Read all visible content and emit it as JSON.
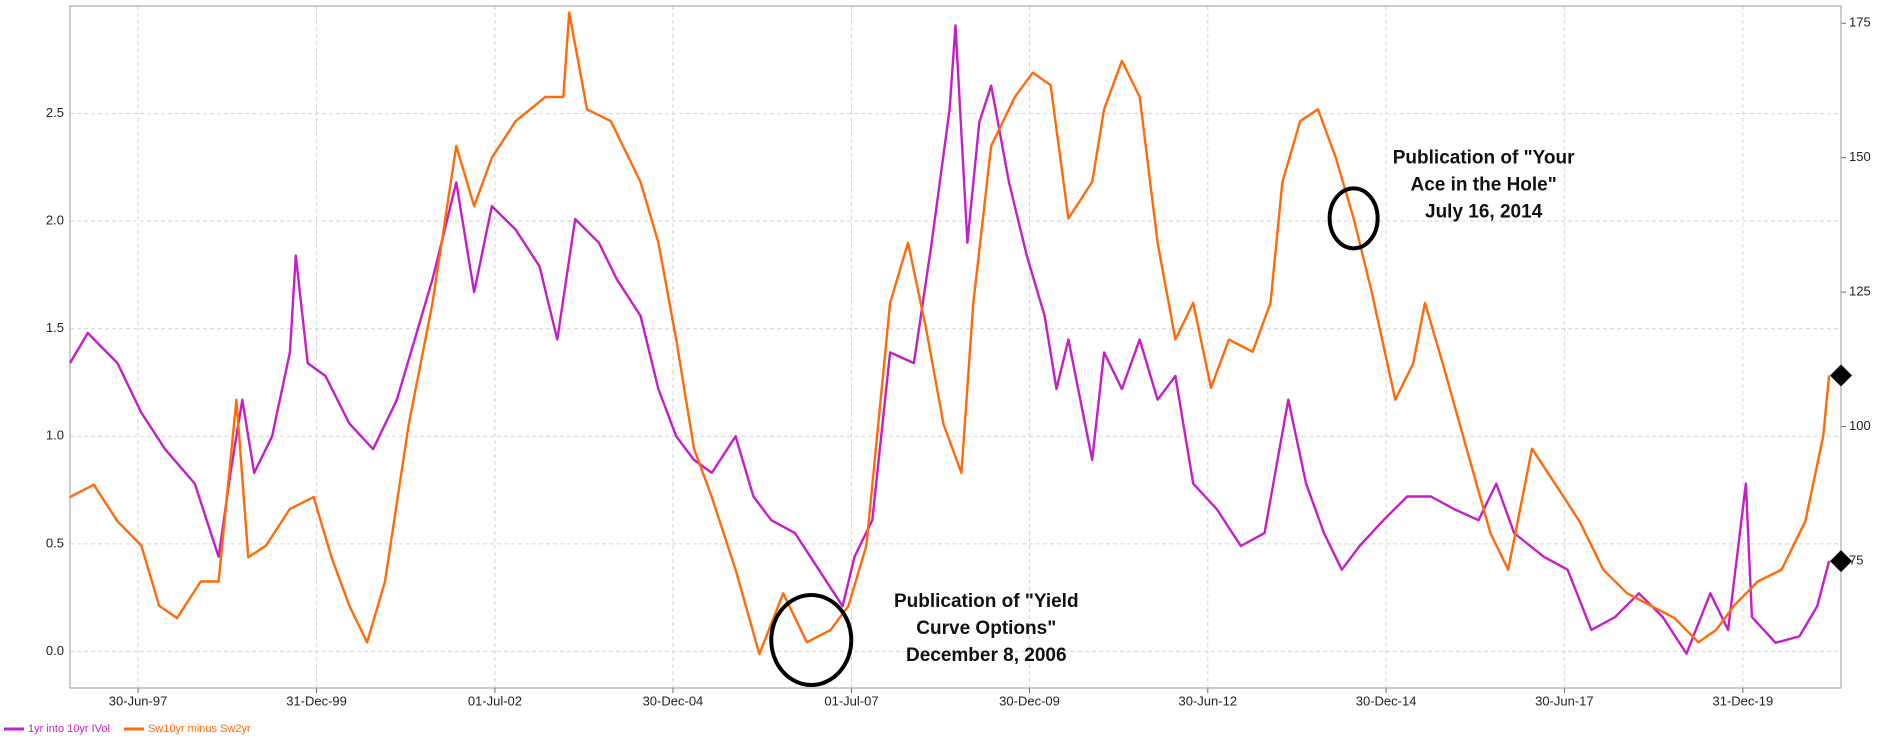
{
  "chart_data": {
    "type": "line",
    "xlim": [
      "1996-07",
      "2021-05"
    ],
    "xticks": [
      {
        "value": "1997-06-30",
        "label": "30-Jun-97"
      },
      {
        "value": "1999-12-31",
        "label": "31-Dec-99"
      },
      {
        "value": "2002-07-01",
        "label": "01-Jul-02"
      },
      {
        "value": "2004-12-30",
        "label": "30-Dec-04"
      },
      {
        "value": "2007-07-01",
        "label": "01-Jul-07"
      },
      {
        "value": "2009-12-30",
        "label": "30-Dec-09"
      },
      {
        "value": "2012-06-30",
        "label": "30-Jun-12"
      },
      {
        "value": "2014-12-30",
        "label": "30-Dec-14"
      },
      {
        "value": "2017-06-30",
        "label": "30-Jun-17"
      },
      {
        "value": "2019-12-31",
        "label": "31-Dec-19"
      }
    ],
    "ylim": [
      -0.17,
      3.0
    ],
    "yticks": [
      {
        "value": 0,
        "label": "0.0"
      },
      0.5,
      {
        "value": 1,
        "label": "1.0"
      },
      1.5,
      {
        "value": 2,
        "label": "2.0"
      },
      2.5
    ],
    "y2lim": [
      51.4,
      178.2
    ],
    "y2ticks": [
      75,
      100,
      125,
      150,
      175
    ],
    "grid": true,
    "end_markers": true,
    "series": [
      {
        "name": "1yr into 10yr IVol",
        "color": "#c41ec8",
        "x": [
          "1996-07",
          "1996-10",
          "1997-03",
          "1997-07",
          "1997-11",
          "1998-04",
          "1998-08",
          "1998-10",
          "1998-12",
          "1999-02",
          "1999-05",
          "1999-08",
          "1999-09",
          "1999-11",
          "2000-02",
          "2000-06",
          "2000-10",
          "2001-02",
          "2001-05",
          "2001-08",
          "2001-12",
          "2002-03",
          "2002-06",
          "2002-10",
          "2003-02",
          "2003-05",
          "2003-08",
          "2003-12",
          "2004-03",
          "2004-07",
          "2004-10",
          "2005-01",
          "2005-04",
          "2005-07",
          "2005-11",
          "2006-02",
          "2006-05",
          "2006-09",
          "2007-01",
          "2007-05",
          "2007-07",
          "2007-10",
          "2008-01",
          "2008-05",
          "2008-08",
          "2008-11",
          "2008-12",
          "2009-02",
          "2009-04",
          "2009-06",
          "2009-09",
          "2009-12",
          "2010-03",
          "2010-05",
          "2010-07",
          "2010-11",
          "2011-01",
          "2011-04",
          "2011-07",
          "2011-10",
          "2012-01",
          "2012-04",
          "2012-08",
          "2012-12",
          "2013-04",
          "2013-08",
          "2013-11",
          "2014-02",
          "2014-05",
          "2014-08",
          "2014-12",
          "2015-04",
          "2015-08",
          "2015-12",
          "2016-04",
          "2016-07",
          "2016-10",
          "2017-03",
          "2017-07",
          "2017-11",
          "2018-03",
          "2018-07",
          "2018-11",
          "2019-03",
          "2019-07",
          "2019-10",
          "2020-01",
          "2020-02",
          "2020-06",
          "2020-10",
          "2021-01",
          "2021-03"
        ],
        "values": [
          1.34,
          1.48,
          1.34,
          1.11,
          0.94,
          0.78,
          0.44,
          0.83,
          1.17,
          0.83,
          1.0,
          1.39,
          1.84,
          1.34,
          1.28,
          1.06,
          0.94,
          1.17,
          1.45,
          1.73,
          2.18,
          1.67,
          2.07,
          1.96,
          1.79,
          1.45,
          2.01,
          1.9,
          1.73,
          1.56,
          1.22,
          1.0,
          0.89,
          0.83,
          1.0,
          0.72,
          0.61,
          0.55,
          0.38,
          0.21,
          0.44,
          0.61,
          1.39,
          1.34,
          1.9,
          2.52,
          2.91,
          1.9,
          2.46,
          2.63,
          2.18,
          1.84,
          1.56,
          1.22,
          1.45,
          0.89,
          1.39,
          1.22,
          1.45,
          1.17,
          1.28,
          0.78,
          0.66,
          0.49,
          0.55,
          1.17,
          0.78,
          0.55,
          0.38,
          0.49,
          0.61,
          0.72,
          0.72,
          0.66,
          0.61,
          0.78,
          0.55,
          0.44,
          0.38,
          0.1,
          0.16,
          0.27,
          0.16,
          -0.01,
          0.27,
          0.1,
          0.78,
          0.16,
          0.04,
          0.07,
          0.21,
          0.42
        ]
      },
      {
        "name": "Sw10yr minus Sw2yr",
        "color": "#ff6a0a",
        "axis": "y2",
        "x": [
          "1996-07",
          "1996-11",
          "1997-03",
          "1997-07",
          "1997-10",
          "1998-01",
          "1998-05",
          "1998-08",
          "1998-11",
          "1999-01",
          "1999-04",
          "1999-08",
          "1999-12",
          "2000-03",
          "2000-06",
          "2000-09",
          "2000-12",
          "2001-04",
          "2001-08",
          "2001-12",
          "2002-03",
          "2002-06",
          "2002-10",
          "2003-03",
          "2003-06",
          "2003-07",
          "2003-10",
          "2004-02",
          "2004-07",
          "2004-10",
          "2005-01",
          "2005-04",
          "2005-07",
          "2005-11",
          "2006-03",
          "2006-07",
          "2006-11",
          "2007-03",
          "2007-06",
          "2007-09",
          "2008-01",
          "2008-04",
          "2008-07",
          "2008-10",
          "2009-01",
          "2009-03",
          "2009-06",
          "2009-10",
          "2010-01",
          "2010-04",
          "2010-07",
          "2010-11",
          "2011-01",
          "2011-04",
          "2011-07",
          "2011-10",
          "2012-01",
          "2012-04",
          "2012-07",
          "2012-10",
          "2013-02",
          "2013-05",
          "2013-07",
          "2013-10",
          "2014-01",
          "2014-04",
          "2014-07",
          "2014-10",
          "2015-02",
          "2015-05",
          "2015-07",
          "2015-10",
          "2016-02",
          "2016-06",
          "2016-09",
          "2017-01",
          "2017-05",
          "2017-09",
          "2018-01",
          "2018-05",
          "2018-09",
          "2019-01",
          "2019-05",
          "2019-08",
          "2019-11",
          "2020-03",
          "2020-07",
          "2020-11",
          "2021-02",
          "2021-03"
        ],
        "values": [
          86.9,
          89.2,
          82.4,
          77.9,
          66.7,
          64.4,
          71.2,
          71.2,
          105,
          75.7,
          77.9,
          84.7,
          86.9,
          75.7,
          66.7,
          59.9,
          71.2,
          100.4,
          123,
          152.2,
          141,
          150,
          156.8,
          161.3,
          161.3,
          177,
          159,
          156.8,
          145.5,
          134.2,
          116.2,
          95.9,
          86.9,
          73.4,
          57.7,
          69,
          59.9,
          62.2,
          66.7,
          77.9,
          123,
          134.2,
          118.5,
          100.4,
          91.4,
          123,
          152.2,
          161.3,
          165.8,
          163.5,
          138.7,
          145.5,
          159,
          168,
          161.3,
          134.2,
          116.2,
          123,
          107.2,
          116.2,
          113.9,
          123,
          145.5,
          156.8,
          159,
          150,
          138.7,
          125.2,
          105,
          111.7,
          123,
          111.7,
          95.9,
          80.2,
          73.4,
          95.9,
          89.2,
          82.4,
          73.4,
          69,
          66.7,
          64.4,
          59.9,
          62.2,
          66.7,
          71.2,
          73.4,
          82.4,
          98.2,
          109.5
        ]
      }
    ],
    "annotations": [
      {
        "x": "2006-12-08",
        "lines": [
          "Publication of \"Yield",
          "Curve Options\"",
          "December 8, 2006"
        ]
      },
      {
        "x": "2014-07-16",
        "lines": [
          "Publication of \"Your",
          "Ace in the Hole\"",
          "July 16, 2014"
        ]
      }
    ]
  }
}
